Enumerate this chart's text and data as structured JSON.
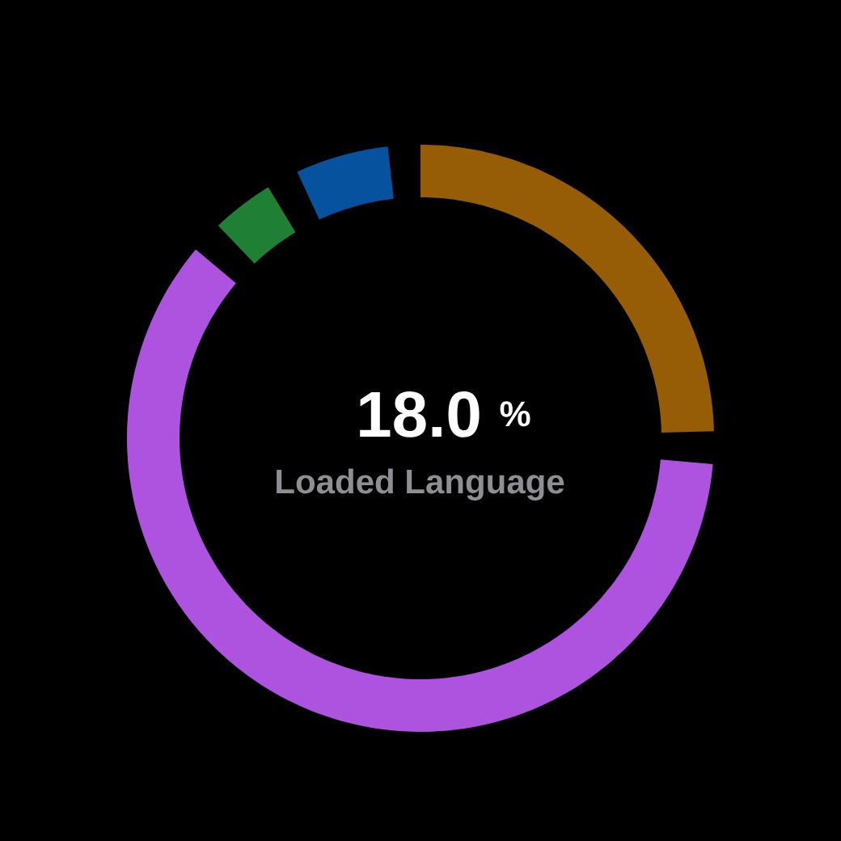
{
  "chart_data": {
    "type": "donut",
    "categories": [
      null,
      null,
      null,
      null
    ],
    "values": [
      26.4,
      61.5,
      5.2,
      6.9
    ],
    "colors": [
      "#975c06",
      "#ae52e0",
      "#1f7f35",
      "#07529f"
    ],
    "annotations": [
      "18.0",
      "%",
      "Loaded Language"
    ]
  }
}
